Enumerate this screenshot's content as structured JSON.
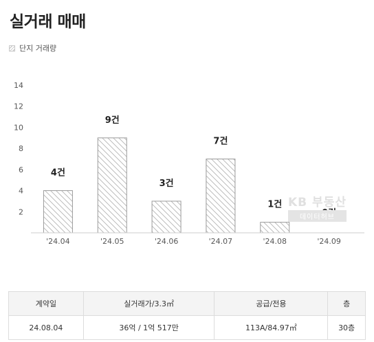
{
  "page": {
    "title": "실거래 매매"
  },
  "legend": {
    "label": "단지 거래량",
    "icon": "hatched-swatch-icon"
  },
  "chart_data": {
    "type": "bar",
    "categories": [
      "'24.04",
      "'24.05",
      "'24.06",
      "'24.07",
      "'24.08",
      "'24.09"
    ],
    "values": [
      4,
      9,
      3,
      7,
      1,
      0
    ],
    "data_labels": [
      "4건",
      "9건",
      "3건",
      "7건",
      "1건",
      "0건"
    ],
    "y_ticks": [
      2,
      4,
      6,
      8,
      10,
      12,
      14
    ],
    "ylim": [
      0,
      14
    ],
    "grid": false,
    "bar_style": "hatched",
    "colors": {
      "bar_fill": "#ffffff",
      "bar_stroke": "#9a9a9a",
      "hatch": "#b5b5b5",
      "axis": "#cccccc"
    }
  },
  "watermark": {
    "main": "KB 부동산",
    "sub": "데이터허브"
  },
  "table": {
    "headers": [
      "계약일",
      "실거래가/3.3㎡",
      "공급/전용",
      "층"
    ],
    "rows": [
      [
        "24.08.04",
        "36억 / 1억 517만",
        "113A/84.97㎡",
        "30층"
      ]
    ]
  }
}
